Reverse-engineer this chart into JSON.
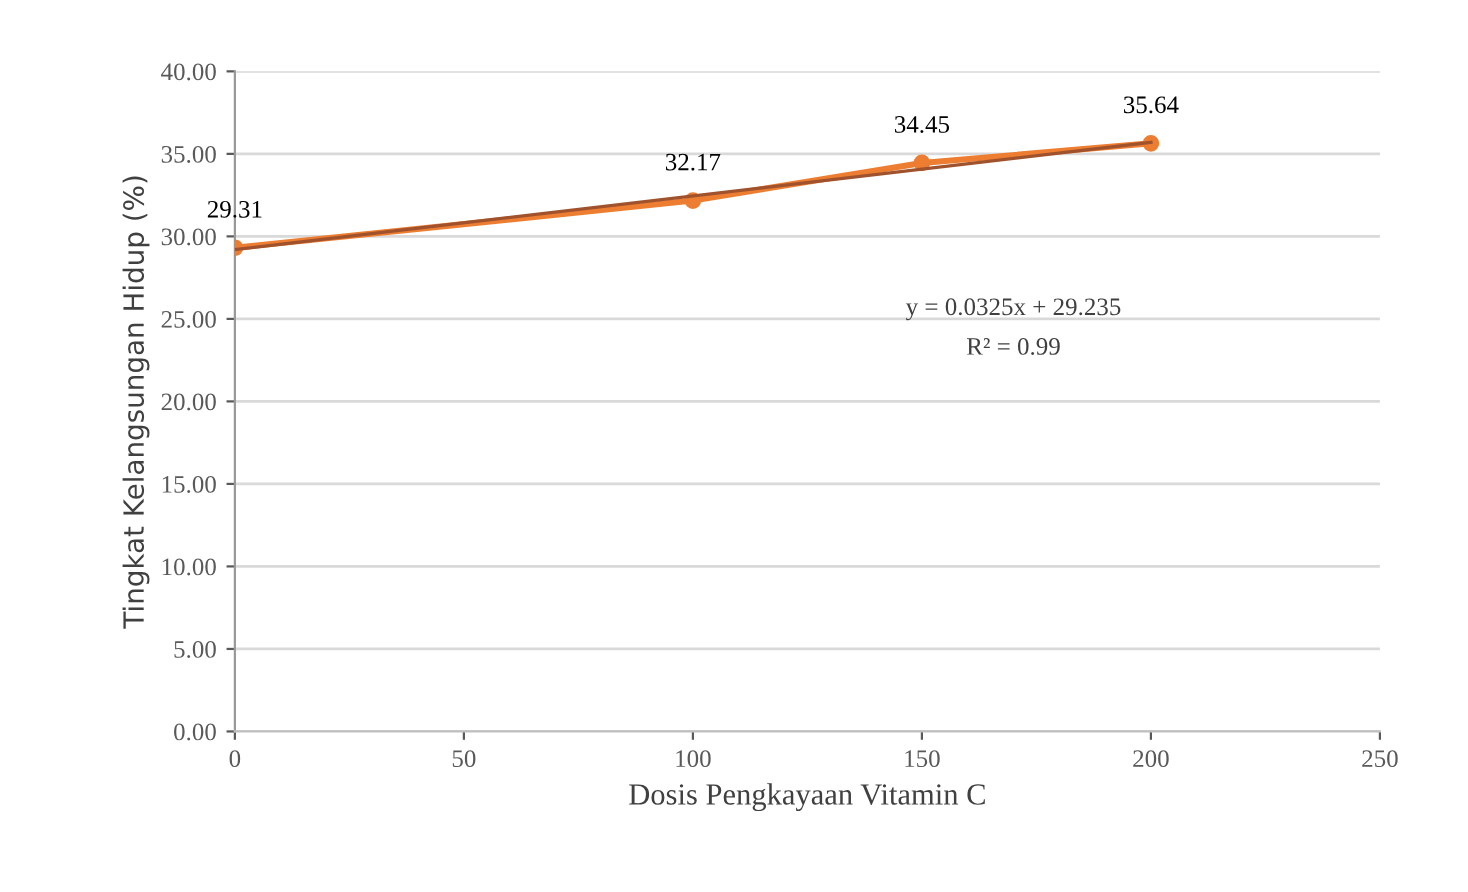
{
  "chart_data": {
    "type": "line",
    "xlabel": "Dosis Pengkayaan Vitamin C",
    "ylabel": "Tingkat Kelangsungan Hidup (%)",
    "x": [
      0,
      100,
      150,
      200
    ],
    "series": [
      {
        "color": "#ed7d31",
        "values": [
          29.31,
          32.17,
          34.45,
          35.64
        ],
        "value_labels": [
          "29.31",
          "32.17",
          "34.45",
          "35.64"
        ],
        "marker": "circle"
      },
      {
        "color": "#a0522d",
        "x": [
          0,
          200
        ],
        "values": [
          29.2,
          35.7
        ],
        "marker": "none"
      }
    ],
    "annotations": [
      "y = 0.0325x + 29.235",
      "R² = 0.99"
    ],
    "xlim": [
      0,
      250
    ],
    "xticks": [
      0,
      50,
      100,
      150,
      200,
      250
    ],
    "ylim": [
      0,
      40
    ],
    "yticks": [
      {
        "value": 0,
        "label": "0.00"
      },
      {
        "value": 5,
        "label": "5.00"
      },
      {
        "value": 10,
        "label": "10.00"
      },
      {
        "value": 15,
        "label": "15.00"
      },
      {
        "value": 20,
        "label": "20.00"
      },
      {
        "value": 25,
        "label": "25.00"
      },
      {
        "value": 30,
        "label": "30.00"
      },
      {
        "value": 35,
        "label": "35.00"
      },
      {
        "value": 40,
        "label": "40.00"
      }
    ],
    "grid": "y",
    "legend": false
  }
}
